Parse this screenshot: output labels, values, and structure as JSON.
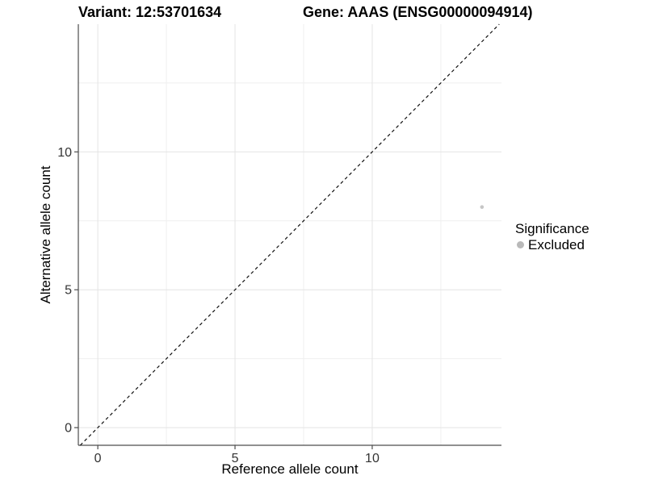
{
  "chart_data": {
    "type": "scatter",
    "title_left": "Variant: 12:53701634",
    "title_right": "Gene: AAAS (ENSG00000094914)",
    "xlabel": "Reference allele count",
    "ylabel": "Alternative allele count",
    "xlim": [
      -0.71,
      14.71
    ],
    "ylim": [
      -0.64,
      14.63
    ],
    "x_major_ticks": [
      0,
      5,
      10
    ],
    "y_major_ticks": [
      0,
      5,
      10
    ],
    "x_minor_grid": [
      2.5,
      7.5,
      12.5
    ],
    "y_minor_grid": [
      2.5,
      7.5,
      12.5
    ],
    "grid": true,
    "identity_line": {
      "equation": "y = x",
      "style": "dashed",
      "color": "#111111"
    },
    "series": [
      {
        "name": "Excluded",
        "color": "#c6c6c6",
        "point_radius": 2.3,
        "points": [
          [
            14,
            8
          ]
        ]
      }
    ],
    "legend": {
      "position": "right",
      "title": "Significance",
      "items": [
        {
          "label": "Excluded",
          "color": "#b9b9b9"
        }
      ]
    },
    "colors": {
      "background": "#ffffff",
      "grid_major": "#e4e4e4",
      "grid_minor": "#efefef",
      "axis_line": "#4d4d4d",
      "tick_label": "#333333",
      "title": "#000000"
    }
  }
}
